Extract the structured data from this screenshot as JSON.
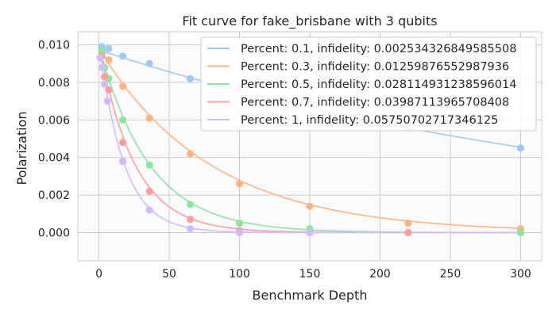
{
  "chart_data": {
    "type": "scatter",
    "title": "Fit curve for fake_brisbane with 3 qubits",
    "xlabel": "Benchmark Depth",
    "ylabel": "Polarization",
    "xlim": [
      -15,
      315
    ],
    "ylim": [
      -0.0015,
      0.0107
    ],
    "xticks": [
      0,
      50,
      100,
      150,
      200,
      250,
      300
    ],
    "xtick_labels": [
      "0",
      "50",
      "100",
      "150",
      "200",
      "250",
      "300"
    ],
    "yticks": [
      0,
      0.002,
      0.004,
      0.006,
      0.008,
      0.01
    ],
    "ytick_labels": [
      "0.000",
      "0.002",
      "0.004",
      "0.006",
      "0.008",
      "0.010"
    ],
    "grid": true,
    "legend_position": "top-right",
    "x": [
      1,
      2,
      3,
      4,
      5,
      6,
      7,
      17,
      36,
      65,
      100,
      150,
      220,
      300
    ],
    "series": [
      {
        "name": "Percent: 0.1, infidelity: 0.002534326849585508",
        "color": "#a1c9f4",
        "decay": 0.002534326849585508,
        "amplitude": 0.0097,
        "points": [
          {
            "x": 2,
            "y": 0.0099
          },
          {
            "x": 7,
            "y": 0.0098
          },
          {
            "x": 17,
            "y": 0.0094
          },
          {
            "x": 36,
            "y": 0.009
          },
          {
            "x": 65,
            "y": 0.0082
          },
          {
            "x": 100,
            "y": 0.0077
          },
          {
            "x": 150,
            "y": 0.0069
          },
          {
            "x": 220,
            "y": 0.0056
          },
          {
            "x": 300,
            "y": 0.0045
          }
        ]
      },
      {
        "name": "Percent: 0.3, infidelity: 0.01259876552987936",
        "color": "#ffb482",
        "decay": 0.01259876552987936,
        "amplitude": 0.0097,
        "points": [
          {
            "x": 2,
            "y": 0.0096
          },
          {
            "x": 7,
            "y": 0.0092
          },
          {
            "x": 17,
            "y": 0.0078
          },
          {
            "x": 36,
            "y": 0.0061
          },
          {
            "x": 65,
            "y": 0.0042
          },
          {
            "x": 100,
            "y": 0.0026
          },
          {
            "x": 150,
            "y": 0.0014
          },
          {
            "x": 220,
            "y": 0.0005
          },
          {
            "x": 300,
            "y": 0.0002
          }
        ]
      },
      {
        "name": "Percent: 0.5, infidelity: 0.028114931238596014",
        "color": "#8de5a1",
        "decay": 0.028114931238596014,
        "amplitude": 0.0097,
        "points": [
          {
            "x": 2,
            "y": 0.0097
          },
          {
            "x": 4,
            "y": 0.0088
          },
          {
            "x": 7,
            "y": 0.0082
          },
          {
            "x": 17,
            "y": 0.006
          },
          {
            "x": 36,
            "y": 0.0036
          },
          {
            "x": 65,
            "y": 0.0015
          },
          {
            "x": 100,
            "y": 0.0005
          },
          {
            "x": 150,
            "y": 0.0002
          },
          {
            "x": 220,
            "y": 0.0
          },
          {
            "x": 300,
            "y": 0.0
          }
        ]
      },
      {
        "name": "Percent: 0.7, infidelity: 0.03987113965708408",
        "color": "#ff9f9b",
        "decay": 0.03987113965708408,
        "amplitude": 0.0097,
        "points": [
          {
            "x": 2,
            "y": 0.0094
          },
          {
            "x": 4,
            "y": 0.0083
          },
          {
            "x": 7,
            "y": 0.0076
          },
          {
            "x": 17,
            "y": 0.0048
          },
          {
            "x": 36,
            "y": 0.0022
          },
          {
            "x": 65,
            "y": 0.0007
          },
          {
            "x": 100,
            "y": 0.0001
          },
          {
            "x": 150,
            "y": 0.0
          },
          {
            "x": 220,
            "y": 0.0
          }
        ]
      },
      {
        "name": "Percent: 1, infidelity: 0.05750702717346125",
        "color": "#d0bbff",
        "decay": 0.05750702717346125,
        "amplitude": 0.0097,
        "points": [
          {
            "x": 1,
            "y": 0.0093
          },
          {
            "x": 2,
            "y": 0.0088
          },
          {
            "x": 4,
            "y": 0.0079
          },
          {
            "x": 6,
            "y": 0.007
          },
          {
            "x": 17,
            "y": 0.0038
          },
          {
            "x": 36,
            "y": 0.0012
          },
          {
            "x": 65,
            "y": 0.0002
          },
          {
            "x": 100,
            "y": 0.0
          },
          {
            "x": 150,
            "y": 0.0
          }
        ]
      }
    ]
  }
}
